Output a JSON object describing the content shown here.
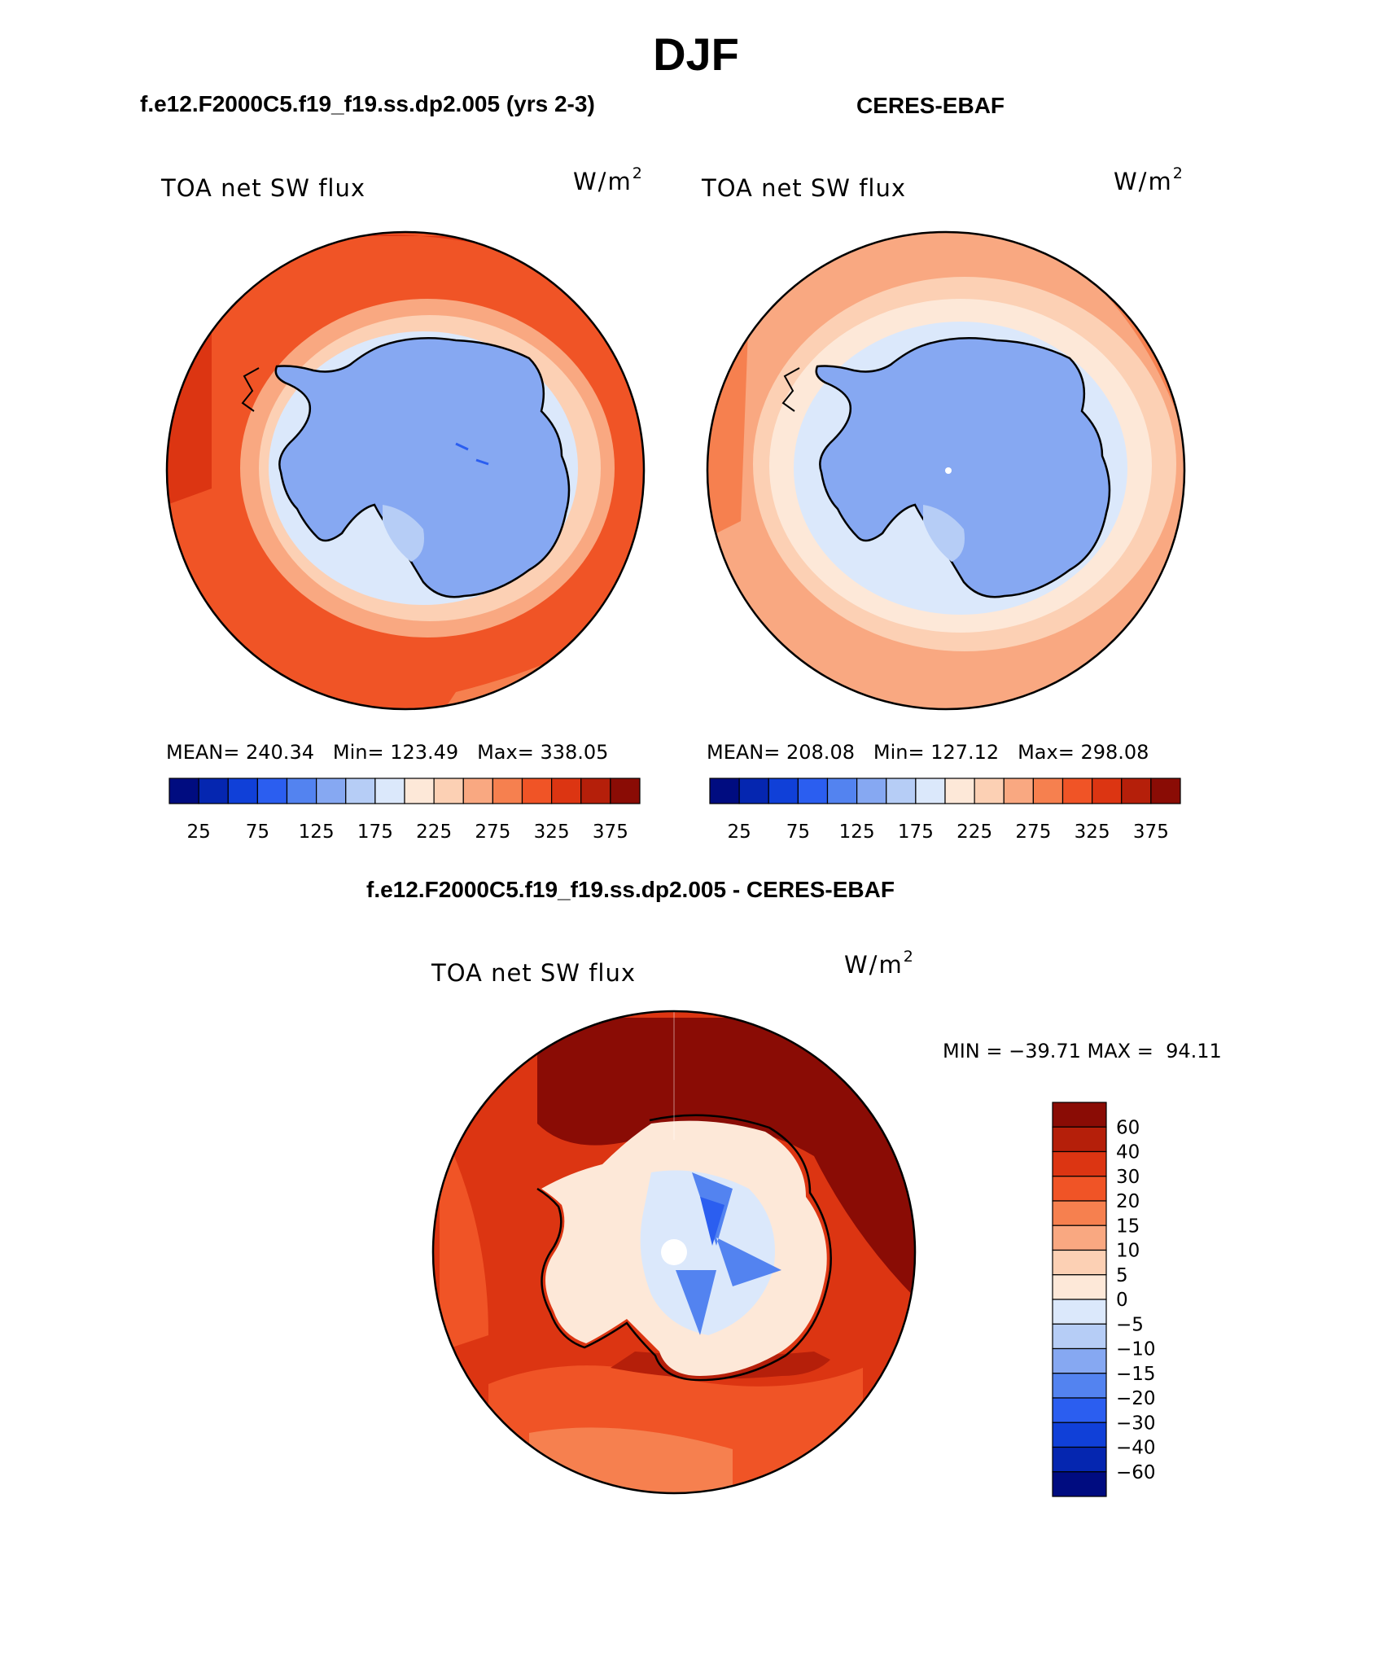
{
  "title": "DJF",
  "panels": [
    {
      "case_title": "f.e12.F2000C5.f19_f19.ss.dp2.005 (yrs 2-3)",
      "variable": "TOA net SW flux",
      "units_base": "W/m",
      "units_exp": "2",
      "stats": {
        "mean_label": "MEAN=",
        "mean": "240.34",
        "min_label": "Min=",
        "min": "123.49",
        "max_label": "Max=",
        "max": "338.05"
      }
    },
    {
      "case_title": "CERES-EBAF",
      "variable": "TOA net SW flux",
      "units_base": "W/m",
      "units_exp": "2",
      "stats": {
        "mean_label": "MEAN=",
        "mean": "208.08",
        "min_label": "Min=",
        "min": "127.12",
        "max_label": "Max=",
        "max": "298.08"
      }
    }
  ],
  "diff_panel": {
    "case_title": "f.e12.F2000C5.f19_f19.ss.dp2.005 - CERES-EBAF",
    "variable": "TOA net SW flux",
    "units_base": "W/m",
    "units_exp": "2",
    "minmax": "MIN = −39.71 MAX =  94.11"
  },
  "colorbar_abs": {
    "colors": [
      "#000c80",
      "#0526b0",
      "#1040d8",
      "#2b5ef0",
      "#5383f0",
      "#86a8f2",
      "#b6cdf6",
      "#dbe8fb",
      "#fde8d8",
      "#fcd0b4",
      "#f9a881",
      "#f6804f",
      "#f05426",
      "#dc3512",
      "#b51f0a",
      "#8a0c05"
    ],
    "tick_labels": [
      "25",
      "75",
      "125",
      "175",
      "225",
      "275",
      "325",
      "375"
    ]
  },
  "colorbar_diff": {
    "colors": [
      "#000c80",
      "#0526b0",
      "#1040d8",
      "#2b5ef0",
      "#5383f0",
      "#86a8f2",
      "#b6cdf6",
      "#dbe8fb",
      "#fde8d8",
      "#fcd0b4",
      "#f9a881",
      "#f6804f",
      "#f05426",
      "#dc3512",
      "#b51f0a",
      "#8a0c05"
    ],
    "tick_labels": [
      "60",
      "40",
      "30",
      "20",
      "15",
      "10",
      "5",
      "0",
      "−5",
      "−10",
      "−15",
      "−20",
      "−30",
      "−40",
      "−60"
    ]
  }
}
